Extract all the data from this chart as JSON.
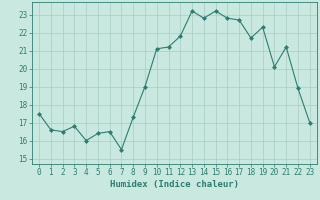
{
  "x": [
    0,
    1,
    2,
    3,
    4,
    5,
    6,
    7,
    8,
    9,
    10,
    11,
    12,
    13,
    14,
    15,
    16,
    17,
    18,
    19,
    20,
    21,
    22,
    23
  ],
  "y": [
    17.5,
    16.6,
    16.5,
    16.8,
    16.0,
    16.4,
    16.5,
    15.5,
    17.3,
    19.0,
    21.1,
    21.2,
    21.8,
    23.2,
    22.8,
    23.2,
    22.8,
    22.7,
    21.7,
    22.3,
    20.1,
    21.2,
    18.9,
    17.0
  ],
  "line_color": "#2e7d72",
  "marker": "D",
  "marker_size": 2.0,
  "bg_color": "#c8e8e0",
  "grid_color": "#aaccc4",
  "xlabel": "Humidex (Indice chaleur)",
  "yticks": [
    15,
    16,
    17,
    18,
    19,
    20,
    21,
    22,
    23
  ],
  "xticks": [
    0,
    1,
    2,
    3,
    4,
    5,
    6,
    7,
    8,
    9,
    10,
    11,
    12,
    13,
    14,
    15,
    16,
    17,
    18,
    19,
    20,
    21,
    22,
    23
  ],
  "tick_fontsize": 5.5,
  "xlabel_fontsize": 6.5,
  "title_color": "#2e7d72",
  "ylim_min": 14.7,
  "ylim_max": 23.7,
  "xlim_min": -0.6,
  "xlim_max": 23.6
}
